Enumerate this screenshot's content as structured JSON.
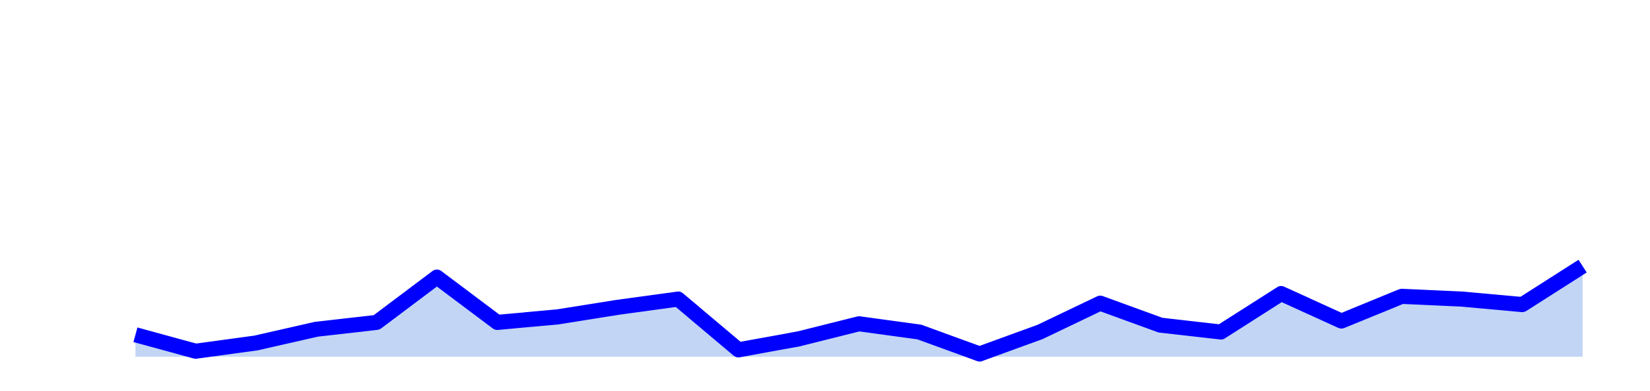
{
  "chart_data": {
    "type": "area",
    "title": "",
    "xlabel": "",
    "ylabel": "",
    "x": [
      1,
      2,
      3,
      4,
      5,
      6,
      7,
      8,
      9,
      10,
      11,
      12,
      13,
      14,
      15,
      16,
      17,
      18,
      19,
      20,
      21,
      22,
      23,
      24,
      25
    ],
    "series": [
      {
        "values": [
          1.6,
          0.4,
          1.0,
          2.0,
          2.5,
          5.8,
          2.5,
          2.9,
          3.6,
          4.2,
          0.5,
          1.3,
          2.4,
          1.8,
          0.2,
          1.8,
          3.9,
          2.3,
          1.8,
          4.6,
          2.6,
          4.4,
          4.2,
          3.8,
          6.6
        ],
        "line_color": "#0000ff",
        "fill_color": "#c2d5f5"
      }
    ],
    "ylim": [
      -1.3,
      24
    ],
    "grid": false,
    "axes_visible": false
  }
}
